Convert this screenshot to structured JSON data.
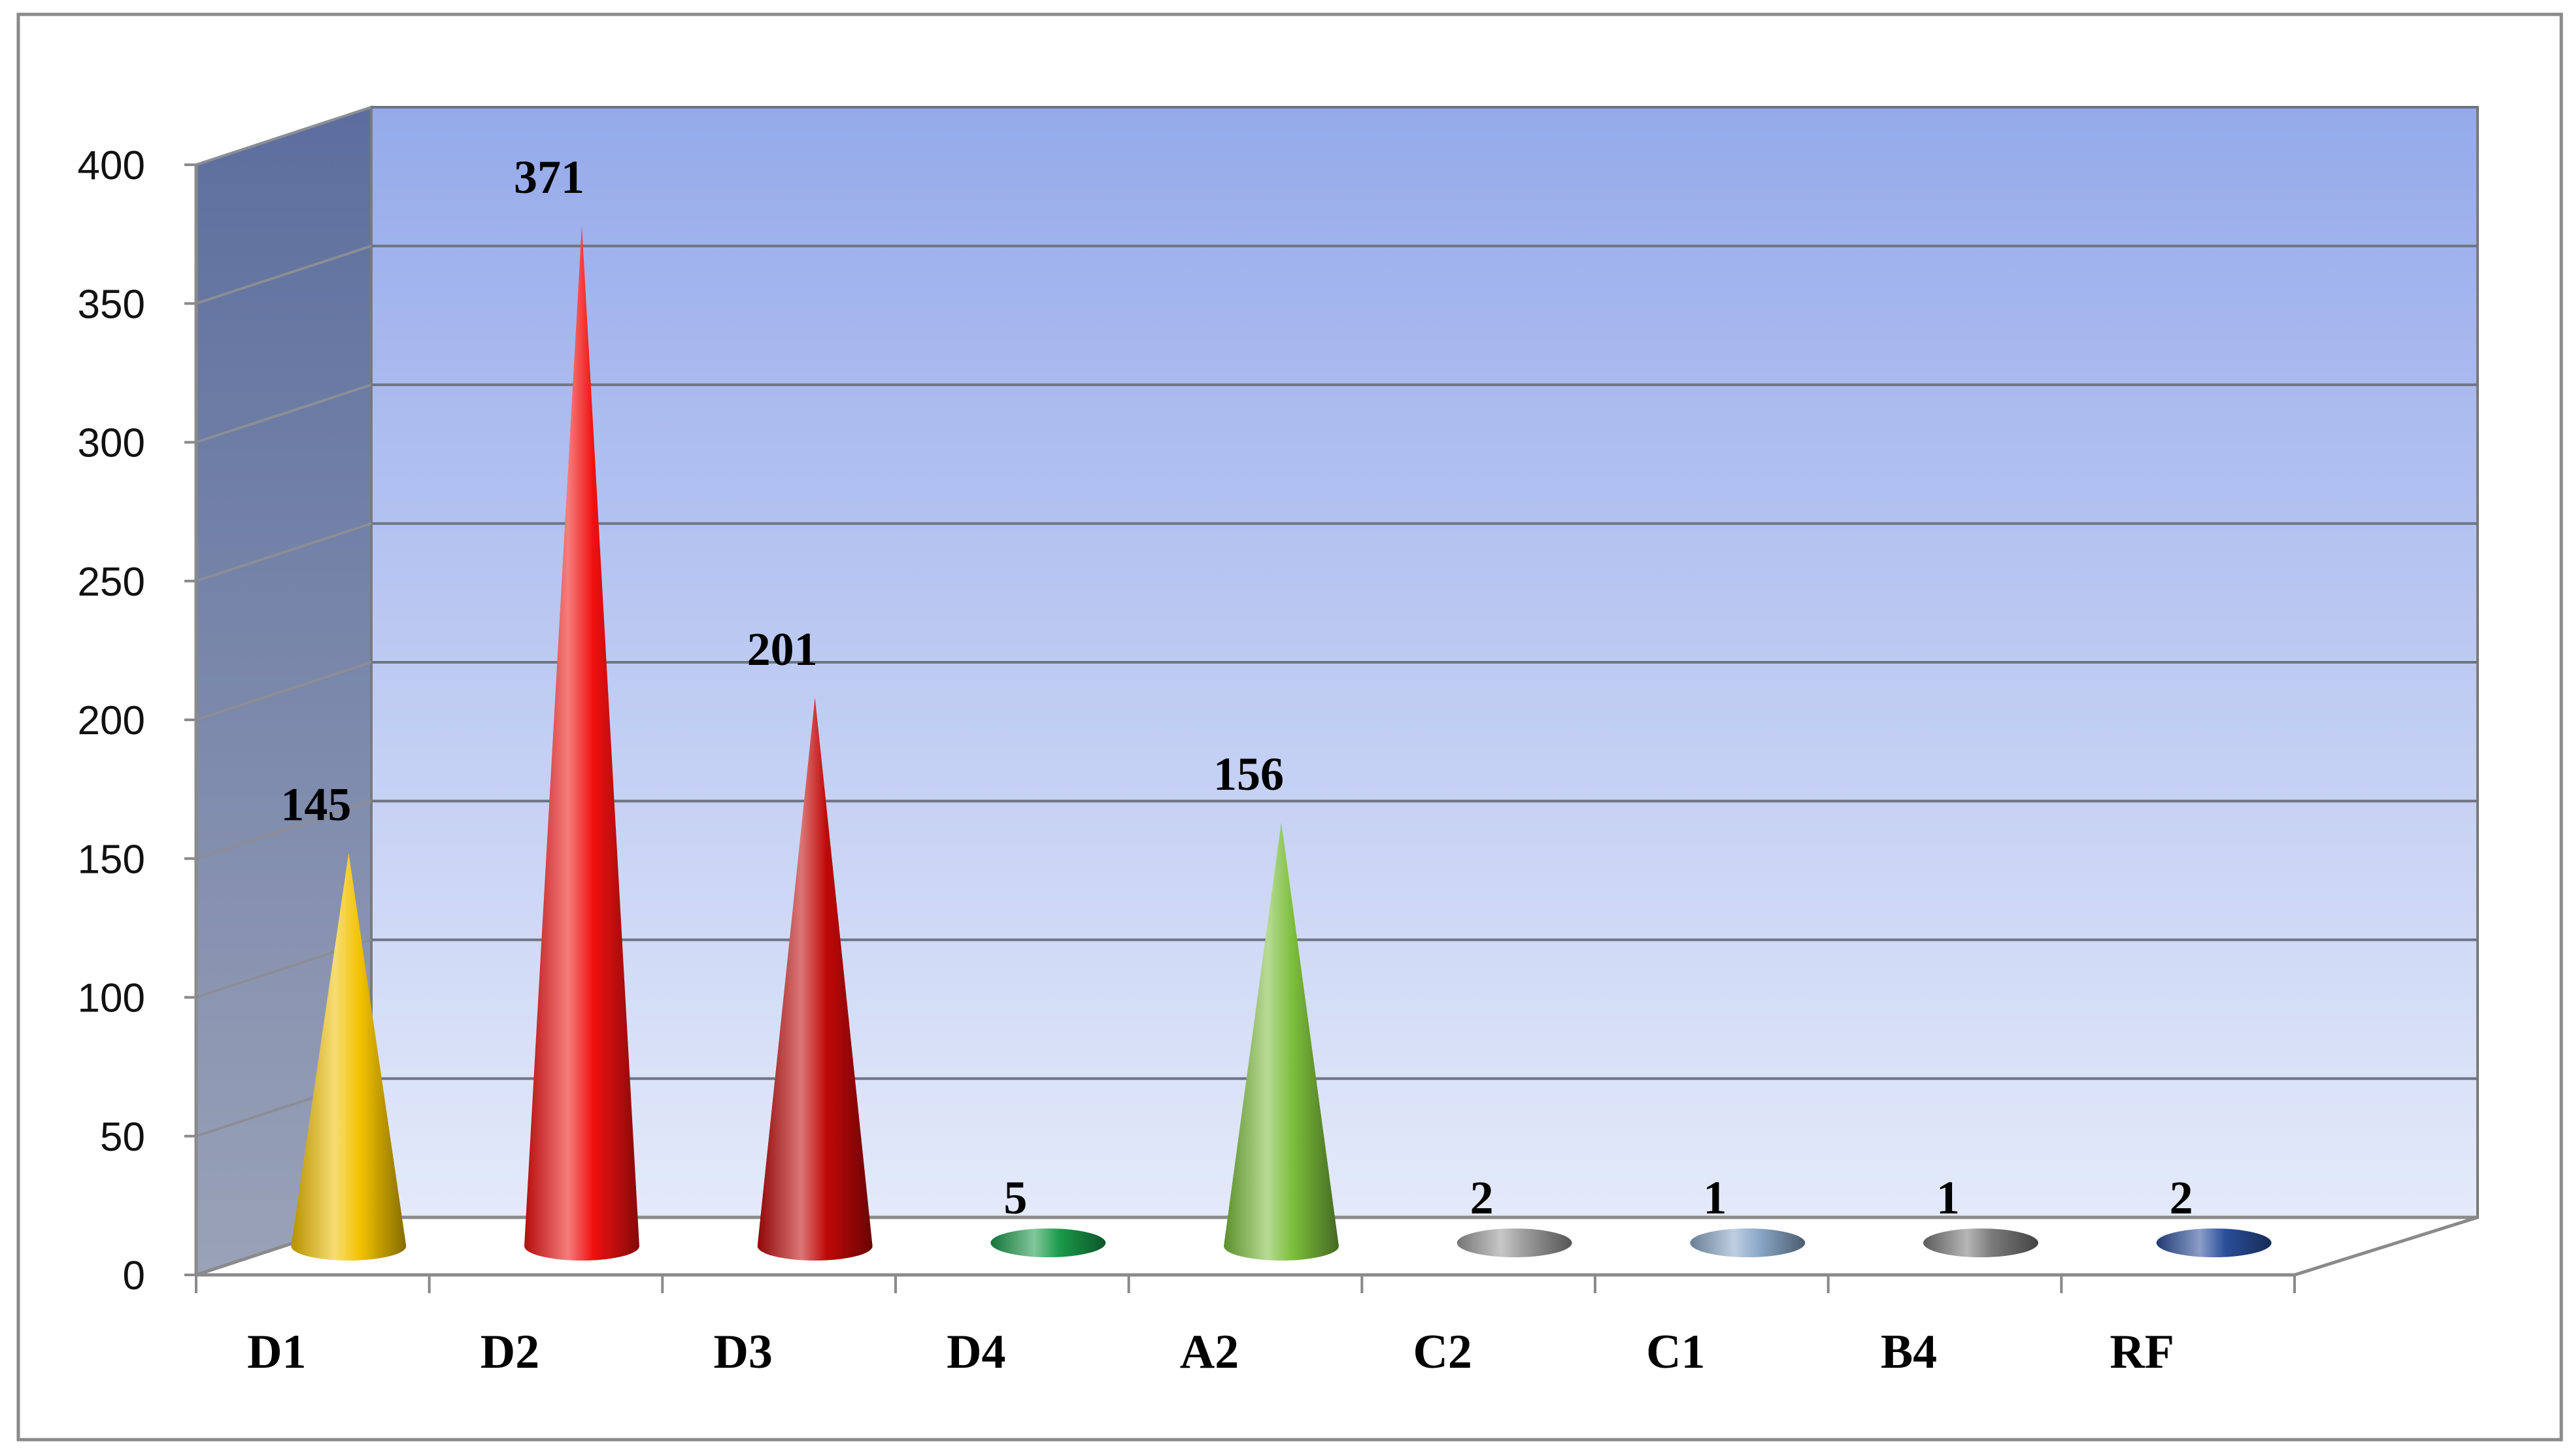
{
  "chart_data": {
    "type": "bar",
    "bar_shape": "cone",
    "three_d": true,
    "categories": [
      "D1",
      "D2",
      "D3",
      "D4",
      "A2",
      "C2",
      "C1",
      "B4",
      "RF"
    ],
    "values": [
      145,
      371,
      201,
      5,
      156,
      2,
      1,
      1,
      2
    ],
    "data_labels": [
      "145",
      "371",
      "201",
      "5",
      "156",
      "2",
      "1",
      "1",
      "2"
    ],
    "colors": [
      "#F2C200",
      "#F01010",
      "#C00808",
      "#1A9A4A",
      "#7CBE3C",
      "#9A9A9A",
      "#8AA8C8",
      "#7A7A7A",
      "#2A4E9A"
    ],
    "ylim": [
      0,
      400
    ],
    "yticks": [
      0,
      50,
      100,
      150,
      200,
      250,
      300,
      350,
      400
    ],
    "ytick_labels": [
      "0",
      "50",
      "100",
      "150",
      "200",
      "250",
      "300",
      "350",
      "400"
    ],
    "grid": true,
    "legend": "none",
    "title": "",
    "xlabel": "",
    "ylabel": ""
  }
}
